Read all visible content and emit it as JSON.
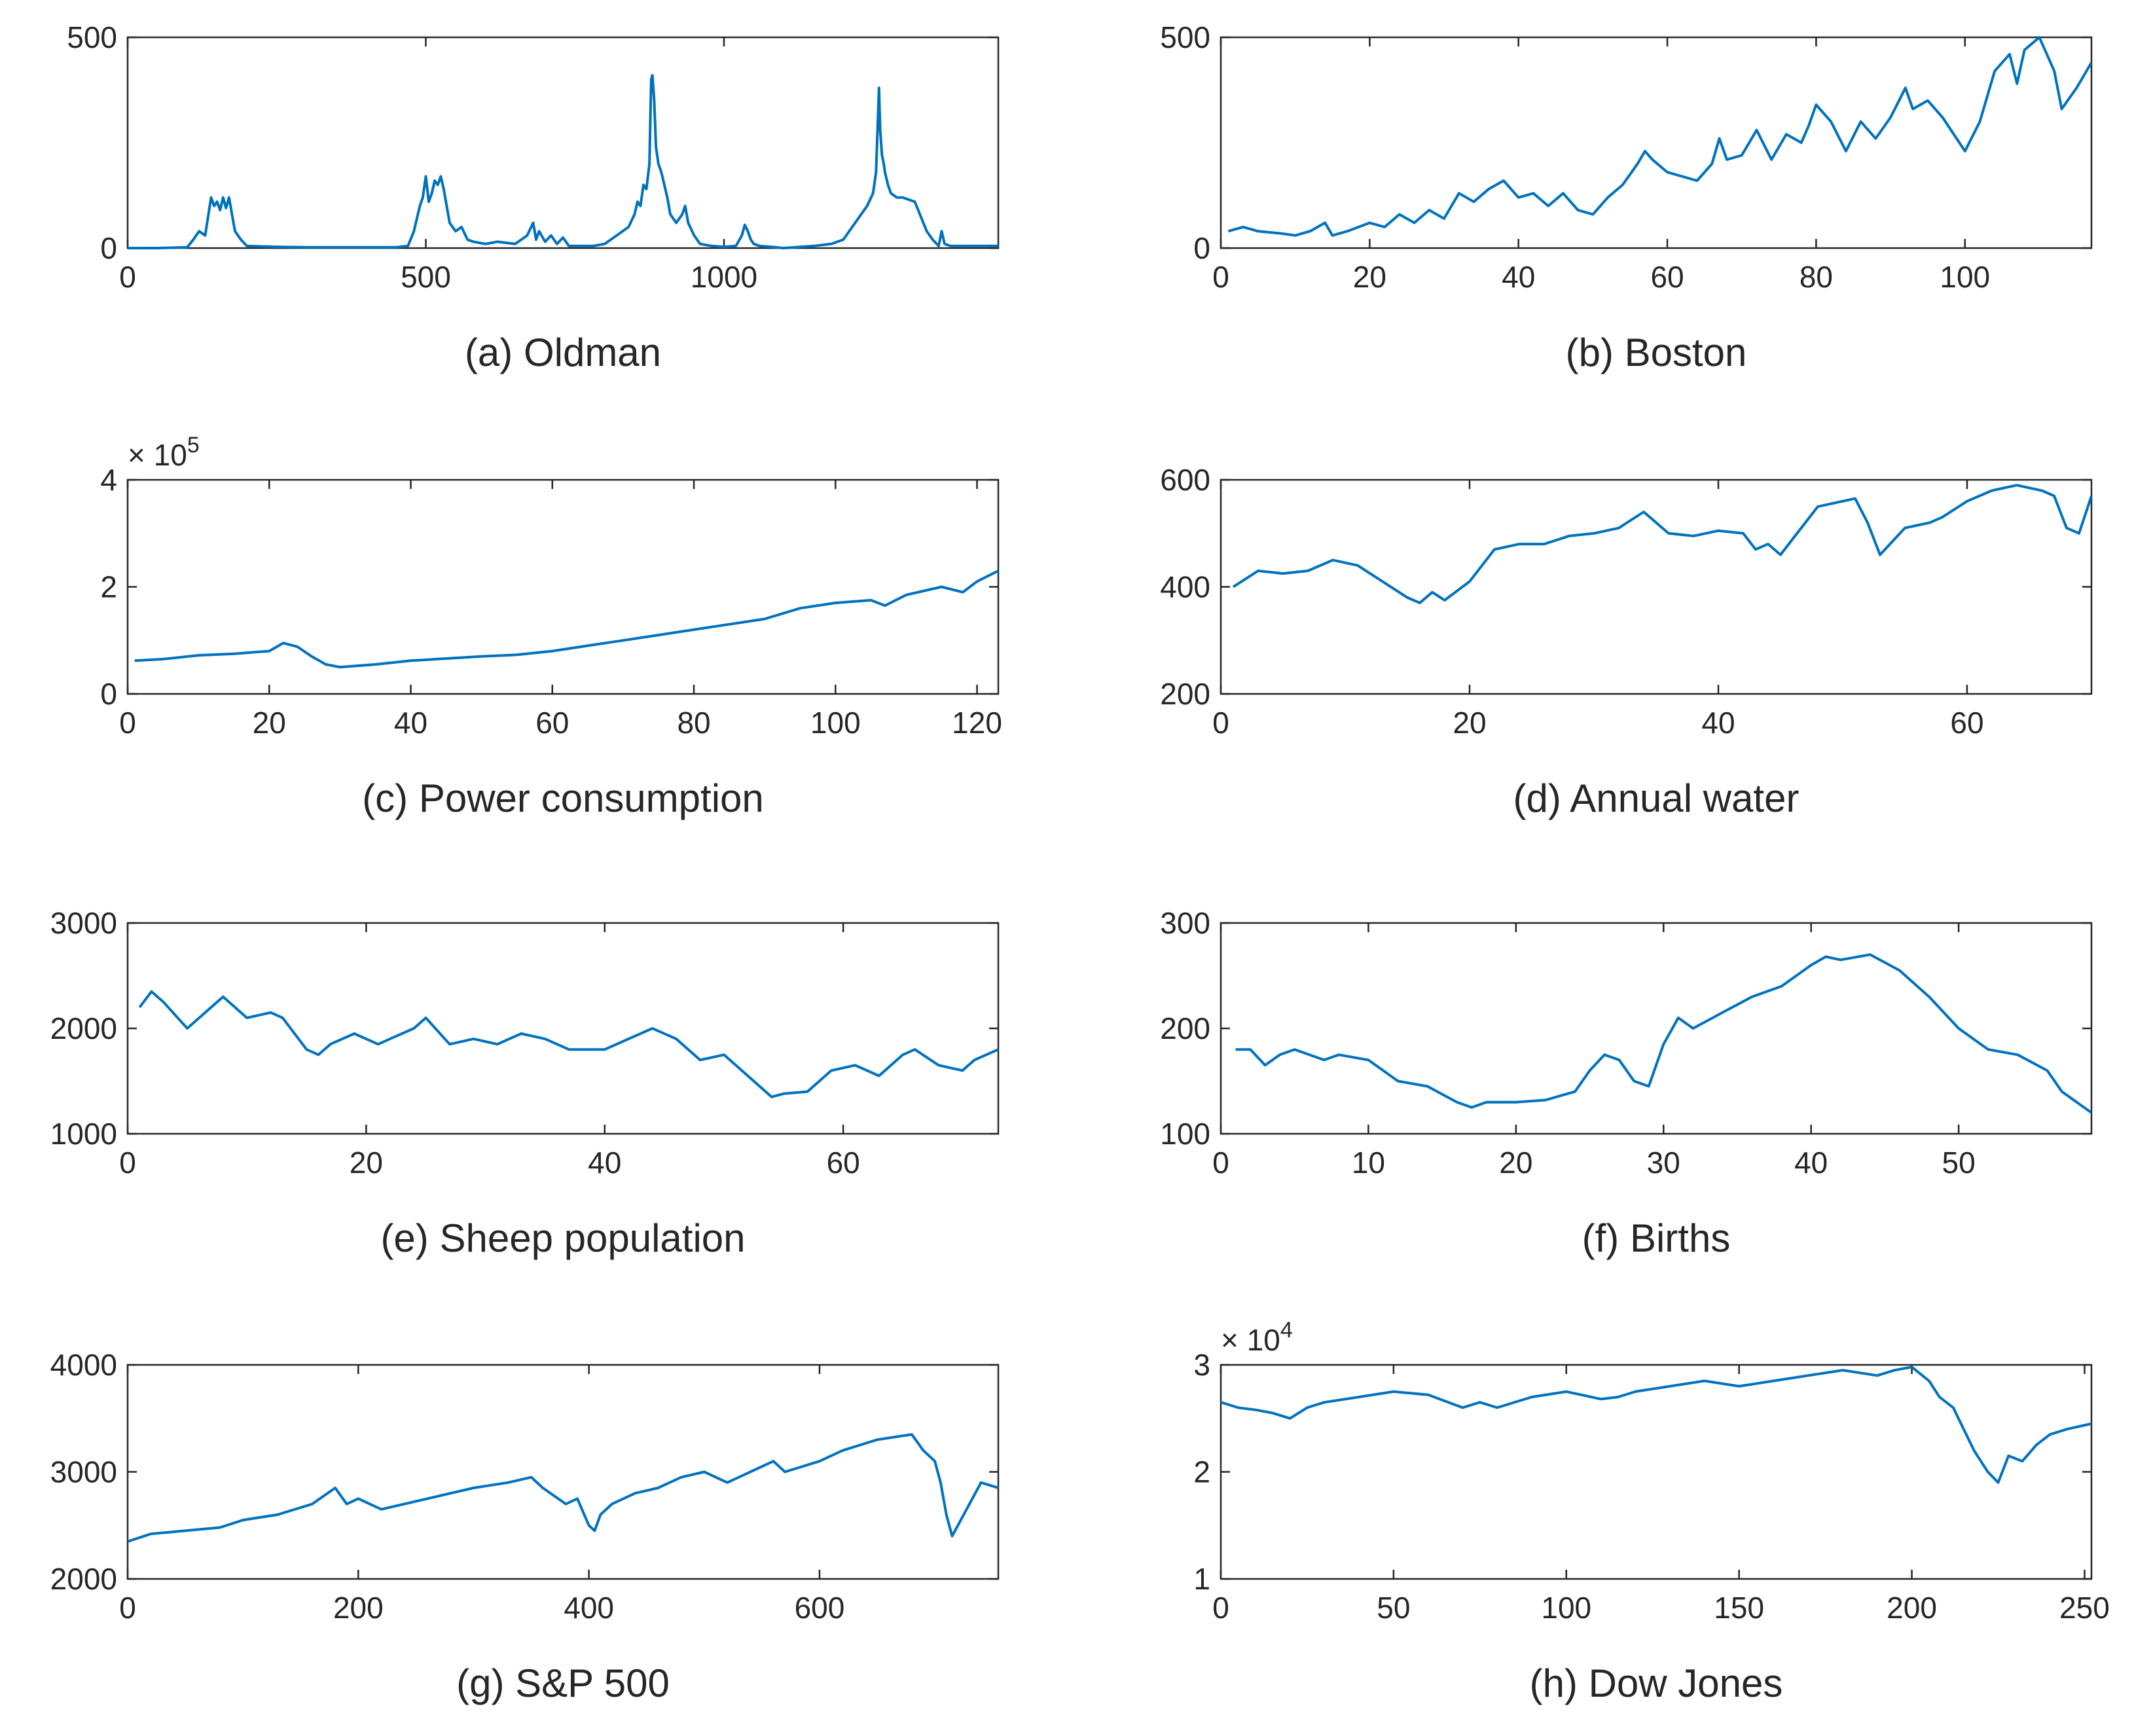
{
  "line_color": "#0072BD",
  "chart_data": [
    {
      "type": "line",
      "caption": "(a) Oldman",
      "xlim": [
        0,
        1460
      ],
      "ylim": [
        0,
        500
      ],
      "xticks": [
        0,
        500,
        1000
      ],
      "xtick_labels": [
        "0",
        "500",
        "1000"
      ],
      "yticks": [
        0,
        500
      ],
      "ytick_labels": [
        "0",
        "500"
      ],
      "exponent": null,
      "x": [
        0,
        50,
        100,
        110,
        120,
        130,
        140,
        145,
        150,
        155,
        160,
        165,
        170,
        175,
        180,
        190,
        200,
        250,
        300,
        350,
        400,
        450,
        470,
        480,
        490,
        495,
        500,
        505,
        510,
        515,
        520,
        525,
        530,
        535,
        540,
        550,
        560,
        570,
        580,
        600,
        620,
        650,
        670,
        680,
        685,
        690,
        700,
        710,
        720,
        730,
        740,
        780,
        800,
        820,
        840,
        850,
        855,
        860,
        865,
        870,
        875,
        878,
        880,
        883,
        886,
        890,
        895,
        900,
        905,
        910,
        920,
        930,
        935,
        940,
        950,
        960,
        980,
        1000,
        1020,
        1030,
        1035,
        1040,
        1045,
        1050,
        1060,
        1080,
        1100,
        1150,
        1180,
        1200,
        1220,
        1230,
        1240,
        1250,
        1255,
        1260,
        1262,
        1265,
        1268,
        1270,
        1275,
        1280,
        1290,
        1300,
        1320,
        1340,
        1350,
        1360,
        1365,
        1370,
        1380,
        1400,
        1420,
        1440,
        1460
      ],
      "y": [
        0,
        0,
        2,
        20,
        40,
        30,
        120,
        100,
        110,
        90,
        120,
        95,
        120,
        80,
        40,
        20,
        5,
        3,
        2,
        2,
        2,
        2,
        5,
        40,
        100,
        120,
        170,
        110,
        130,
        160,
        150,
        170,
        140,
        100,
        60,
        40,
        50,
        20,
        15,
        10,
        15,
        10,
        30,
        60,
        20,
        40,
        15,
        30,
        10,
        25,
        5,
        5,
        10,
        30,
        50,
        80,
        110,
        100,
        150,
        140,
        200,
        400,
        410,
        350,
        240,
        200,
        180,
        150,
        120,
        80,
        60,
        80,
        100,
        60,
        30,
        10,
        5,
        3,
        5,
        30,
        55,
        40,
        20,
        10,
        5,
        3,
        0,
        5,
        10,
        20,
        60,
        80,
        100,
        130,
        180,
        380,
        280,
        220,
        200,
        180,
        150,
        130,
        120,
        120,
        110,
        40,
        20,
        5,
        40,
        10,
        5,
        5,
        5,
        5,
        5
      ]
    },
    {
      "type": "line",
      "caption": "(b) Boston",
      "xlim": [
        0,
        117
      ],
      "ylim": [
        0,
        500
      ],
      "xticks": [
        0,
        20,
        40,
        60,
        80,
        100
      ],
      "xtick_labels": [
        "0",
        "20",
        "40",
        "60",
        "80",
        "100"
      ],
      "yticks": [
        0,
        500
      ],
      "ytick_labels": [
        "0",
        "500"
      ],
      "exponent": null,
      "x": [
        1,
        3,
        5,
        8,
        10,
        12,
        14,
        15,
        17,
        20,
        22,
        24,
        26,
        28,
        30,
        32,
        34,
        36,
        38,
        40,
        42,
        44,
        46,
        48,
        50,
        52,
        54,
        56,
        57,
        58,
        60,
        62,
        64,
        66,
        67,
        68,
        70,
        72,
        74,
        76,
        78,
        79,
        80,
        82,
        84,
        86,
        88,
        90,
        92,
        93,
        95,
        97,
        100,
        102,
        104,
        106,
        107,
        108,
        110,
        112,
        113,
        115,
        117
      ],
      "y": [
        40,
        50,
        40,
        35,
        30,
        40,
        60,
        30,
        40,
        60,
        50,
        80,
        60,
        90,
        70,
        130,
        110,
        140,
        160,
        120,
        130,
        100,
        130,
        90,
        80,
        120,
        150,
        200,
        230,
        210,
        180,
        170,
        160,
        200,
        260,
        210,
        220,
        280,
        210,
        270,
        250,
        290,
        340,
        300,
        230,
        300,
        260,
        310,
        380,
        330,
        350,
        310,
        230,
        300,
        420,
        460,
        390,
        470,
        500,
        420,
        330,
        380,
        440
      ]
    },
    {
      "type": "line",
      "caption": "(c) Power consumption",
      "xlim": [
        0,
        123
      ],
      "ylim": [
        0,
        400000
      ],
      "xticks": [
        0,
        20,
        40,
        60,
        80,
        100,
        120
      ],
      "xtick_labels": [
        "0",
        "20",
        "40",
        "60",
        "80",
        "100",
        "120"
      ],
      "yticks": [
        0,
        200000,
        400000
      ],
      "ytick_labels": [
        "0",
        "2",
        "4"
      ],
      "exponent": "5",
      "x": [
        1,
        5,
        10,
        15,
        20,
        22,
        24,
        26,
        28,
        30,
        35,
        40,
        45,
        50,
        55,
        60,
        65,
        70,
        75,
        80,
        85,
        90,
        95,
        100,
        105,
        107,
        110,
        115,
        118,
        120,
        123
      ],
      "y": [
        62000,
        65000,
        72000,
        75000,
        80000,
        95000,
        88000,
        70000,
        55000,
        50000,
        55000,
        62000,
        66000,
        70000,
        73000,
        80000,
        90000,
        100000,
        110000,
        120000,
        130000,
        140000,
        160000,
        170000,
        175000,
        165000,
        185000,
        200000,
        190000,
        210000,
        230000
      ]
    },
    {
      "type": "line",
      "caption": "(d) Annual water",
      "xlim": [
        0,
        70
      ],
      "ylim": [
        200,
        600
      ],
      "xticks": [
        0,
        20,
        40,
        60
      ],
      "xtick_labels": [
        "0",
        "20",
        "40",
        "60"
      ],
      "yticks": [
        200,
        400,
        600
      ],
      "ytick_labels": [
        "200",
        "400",
        "600"
      ],
      "exponent": null,
      "x": [
        1,
        3,
        5,
        7,
        9,
        11,
        13,
        15,
        16,
        17,
        18,
        20,
        22,
        24,
        26,
        28,
        30,
        32,
        34,
        36,
        38,
        40,
        42,
        43,
        44,
        45,
        46,
        48,
        50,
        51,
        52,
        53,
        55,
        57,
        58,
        60,
        62,
        64,
        66,
        67,
        68,
        69,
        70
      ],
      "y": [
        400,
        430,
        425,
        430,
        450,
        440,
        410,
        380,
        370,
        390,
        375,
        410,
        470,
        480,
        480,
        495,
        500,
        510,
        540,
        500,
        495,
        505,
        500,
        470,
        480,
        460,
        490,
        550,
        560,
        565,
        520,
        460,
        510,
        520,
        530,
        560,
        580,
        590,
        580,
        570,
        510,
        500,
        570
      ]
    },
    {
      "type": "line",
      "caption": "(e) Sheep population",
      "xlim": [
        0,
        73
      ],
      "ylim": [
        1000,
        3000
      ],
      "xticks": [
        0,
        20,
        40,
        60
      ],
      "xtick_labels": [
        "0",
        "20",
        "40",
        "60"
      ],
      "yticks": [
        1000,
        2000,
        3000
      ],
      "ytick_labels": [
        "1000",
        "2000",
        "3000"
      ],
      "exponent": null,
      "x": [
        1,
        2,
        3,
        5,
        6,
        8,
        10,
        12,
        13,
        15,
        16,
        17,
        19,
        21,
        22,
        24,
        25,
        27,
        29,
        31,
        33,
        35,
        37,
        40,
        42,
        44,
        46,
        48,
        50,
        52,
        54,
        55,
        57,
        59,
        61,
        63,
        65,
        66,
        68,
        70,
        71,
        73
      ],
      "y": [
        2200,
        2350,
        2250,
        2000,
        2100,
        2300,
        2100,
        2150,
        2100,
        1800,
        1750,
        1850,
        1950,
        1850,
        1900,
        2000,
        2100,
        1850,
        1900,
        1850,
        1950,
        1900,
        1800,
        1800,
        1900,
        2000,
        1900,
        1700,
        1750,
        1550,
        1350,
        1380,
        1400,
        1600,
        1650,
        1550,
        1750,
        1800,
        1650,
        1600,
        1700,
        1800
      ]
    },
    {
      "type": "line",
      "caption": "(f) Births",
      "xlim": [
        0,
        59
      ],
      "ylim": [
        100,
        300
      ],
      "xticks": [
        0,
        10,
        20,
        30,
        40,
        50
      ],
      "xtick_labels": [
        "0",
        "10",
        "20",
        "30",
        "40",
        "50"
      ],
      "yticks": [
        100,
        200,
        300
      ],
      "ytick_labels": [
        "100",
        "200",
        "300"
      ],
      "exponent": null,
      "x": [
        1,
        2,
        3,
        4,
        5,
        7,
        8,
        10,
        12,
        14,
        16,
        17,
        18,
        20,
        22,
        24,
        25,
        26,
        27,
        28,
        29,
        30,
        31,
        32,
        34,
        36,
        38,
        40,
        41,
        42,
        44,
        46,
        48,
        50,
        52,
        54,
        56,
        57,
        59
      ],
      "y": [
        180,
        180,
        165,
        175,
        180,
        170,
        175,
        170,
        150,
        145,
        130,
        125,
        130,
        130,
        132,
        140,
        160,
        175,
        170,
        150,
        145,
        185,
        210,
        200,
        215,
        230,
        240,
        260,
        268,
        265,
        270,
        255,
        230,
        200,
        180,
        175,
        160,
        140,
        120
      ]
    },
    {
      "type": "line",
      "caption": "(g)  S&P 500",
      "xlim": [
        0,
        755
      ],
      "ylim": [
        2000,
        4000
      ],
      "xticks": [
        0,
        200,
        400,
        600
      ],
      "xtick_labels": [
        "0",
        "200",
        "400",
        "600"
      ],
      "yticks": [
        2000,
        3000,
        4000
      ],
      "ytick_labels": [
        "2000",
        "3000",
        "4000"
      ],
      "exponent": null,
      "x": [
        0,
        20,
        50,
        80,
        100,
        130,
        160,
        180,
        190,
        200,
        220,
        240,
        260,
        280,
        300,
        330,
        350,
        360,
        380,
        390,
        400,
        405,
        410,
        420,
        440,
        460,
        480,
        500,
        520,
        540,
        560,
        570,
        600,
        620,
        650,
        680,
        690,
        700,
        705,
        710,
        715,
        720,
        730,
        740,
        755
      ],
      "y": [
        2350,
        2420,
        2450,
        2480,
        2550,
        2600,
        2700,
        2850,
        2700,
        2750,
        2650,
        2700,
        2750,
        2800,
        2850,
        2900,
        2950,
        2850,
        2700,
        2750,
        2500,
        2450,
        2600,
        2700,
        2800,
        2850,
        2950,
        3000,
        2900,
        3000,
        3100,
        3000,
        3100,
        3200,
        3300,
        3350,
        3200,
        3100,
        2900,
        2600,
        2400,
        2500,
        2700,
        2900,
        2850
      ]
    },
    {
      "type": "line",
      "caption": "(h)  Dow Jones",
      "xlim": [
        0,
        252
      ],
      "ylim": [
        10000,
        30000
      ],
      "xticks": [
        0,
        50,
        100,
        150,
        200,
        250
      ],
      "xtick_labels": [
        "0",
        "50",
        "100",
        "150",
        "200",
        "250"
      ],
      "yticks": [
        10000,
        20000,
        30000
      ],
      "ytick_labels": [
        "1",
        "2",
        "3"
      ],
      "exponent": "4",
      "x": [
        0,
        5,
        10,
        15,
        20,
        25,
        30,
        40,
        50,
        60,
        70,
        75,
        80,
        90,
        100,
        110,
        115,
        120,
        130,
        140,
        150,
        160,
        170,
        180,
        190,
        195,
        200,
        205,
        208,
        212,
        215,
        218,
        220,
        222,
        225,
        228,
        232,
        236,
        240,
        245,
        252
      ],
      "y": [
        26500,
        26000,
        25800,
        25500,
        25000,
        26000,
        26500,
        27000,
        27500,
        27200,
        26000,
        26500,
        26000,
        27000,
        27500,
        26800,
        27000,
        27500,
        28000,
        28500,
        28000,
        28500,
        29000,
        29500,
        29000,
        29500,
        29800,
        28500,
        27000,
        26000,
        24000,
        22000,
        21000,
        20000,
        19000,
        21500,
        21000,
        22500,
        23500,
        24000,
        24500
      ]
    }
  ]
}
